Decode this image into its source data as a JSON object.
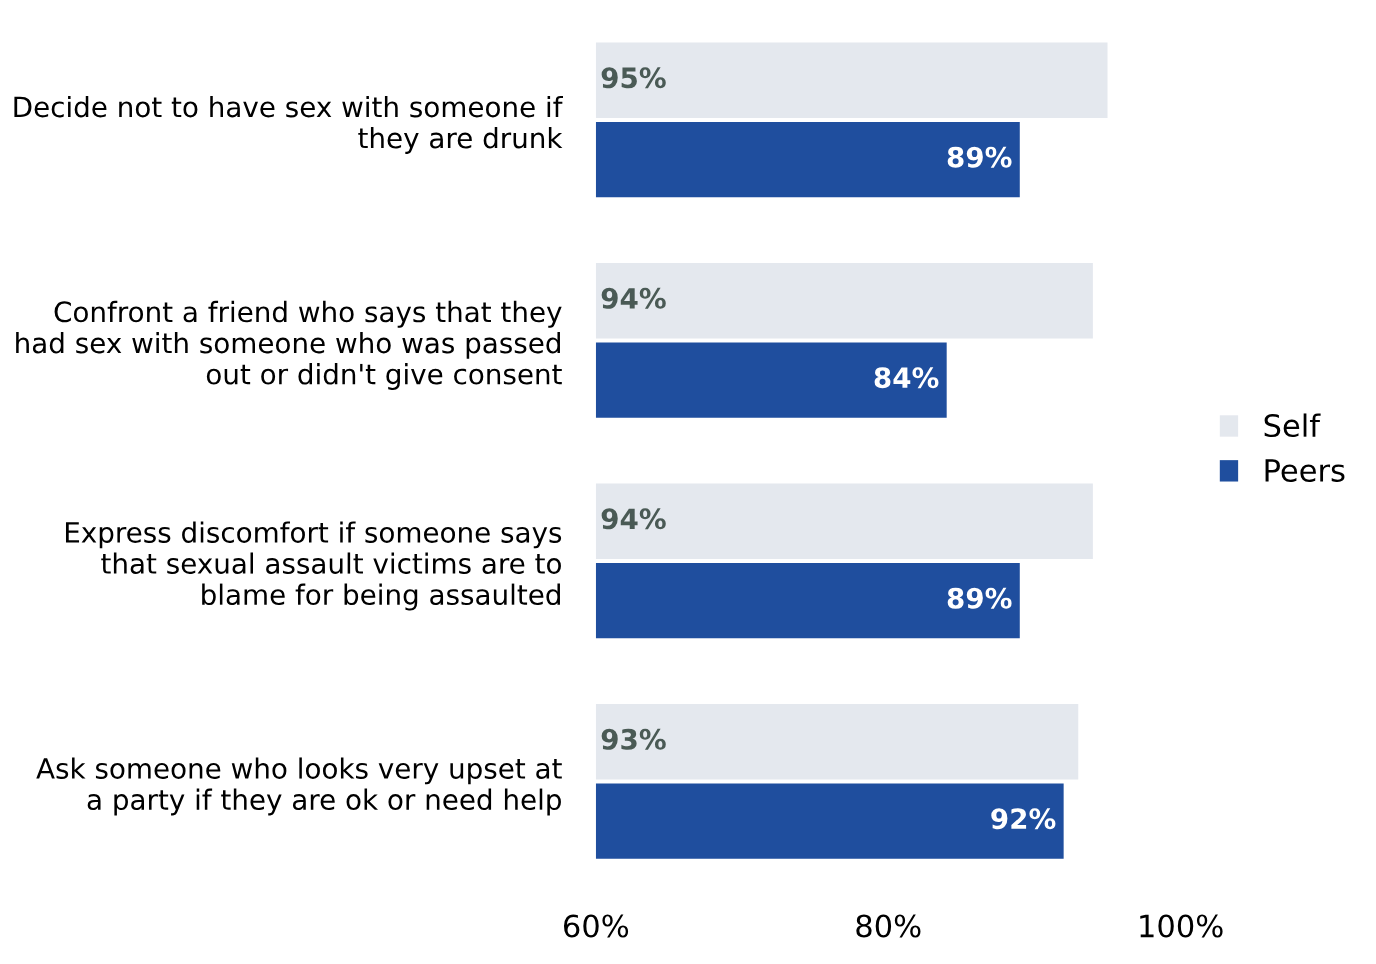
{
  "chart_data": {
    "type": "bar",
    "orientation": "horizontal",
    "categories": [
      "Decide not to have sex with someone if\nthey are drunk",
      "Confront a friend who says that they\nhad sex with someone who was passed\nout or didn't give consent",
      "Express discomfort if someone says\nthat sexual assault victims are to\nblame for being assaulted",
      "Ask someone who looks very upset at\na party if they are ok or need help"
    ],
    "series": [
      {
        "name": "Self",
        "color": "#e4e8ee",
        "values": [
          95,
          94,
          94,
          93
        ],
        "value_labels": [
          "95%",
          "94%",
          "94%",
          "93%"
        ]
      },
      {
        "name": "Peers",
        "color": "#1f4e9e",
        "values": [
          89,
          84,
          89,
          92
        ],
        "value_labels": [
          "89%",
          "84%",
          "89%",
          "92%"
        ]
      }
    ],
    "xlim": [
      60,
      100
    ],
    "xticks": [
      {
        "value": 60,
        "label": "60%"
      },
      {
        "value": 80,
        "label": "80%"
      },
      {
        "value": 100,
        "label": "100%"
      }
    ],
    "grid": false,
    "legend": "right"
  }
}
